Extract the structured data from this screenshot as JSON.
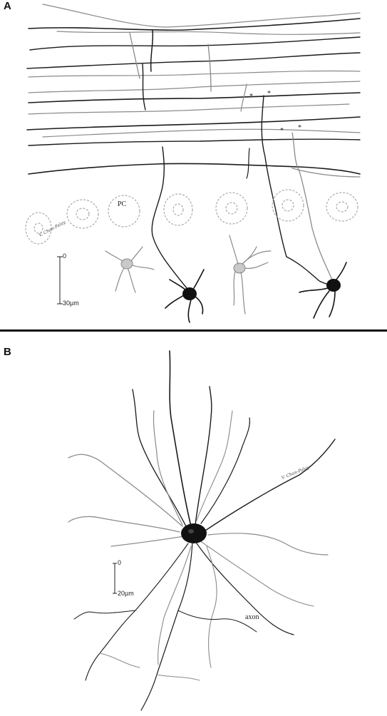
{
  "panel_a": {
    "label": "A",
    "pc_label": "PC",
    "signature": "V. Chan-Palay",
    "asterisk_1": "*",
    "asterisk_2": "*",
    "asterisk_3": "*",
    "asterisk_4": "*",
    "scale_top": "0",
    "scale_bottom": "30µm"
  },
  "panel_b": {
    "label": "B",
    "signature": "V. Chan-Palay",
    "axon_label": "axon",
    "scale_top": "0",
    "scale_bottom": "20µm"
  },
  "colors": {
    "dark_fiber": "#1a1a1a",
    "grey_fiber": "#8a8a8a",
    "cell_outline": "#9a9a9a"
  }
}
